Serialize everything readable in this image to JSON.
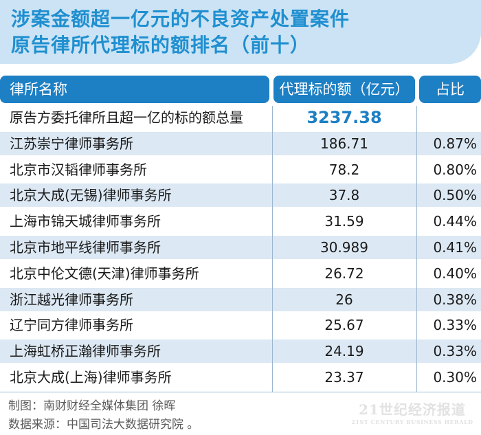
{
  "title": {
    "line1": "涉案金额超一亿元的不良资产处置案件",
    "line2": "原告律所代理标的额排名（前十）"
  },
  "table_header": {
    "name": "律所名称",
    "amount": "代理标的额（亿元）",
    "share": "占比"
  },
  "total_row": {
    "name": "原告方委托律所且超一亿的标的额总量",
    "amount": "3237.38",
    "share": ""
  },
  "rows": [
    {
      "name": "江苏崇宁律师事务所",
      "amount": "186.71",
      "share": "0.87%"
    },
    {
      "name": "北京市汉韬律师事务所",
      "amount": "78.2",
      "share": "0.80%"
    },
    {
      "name": "北京大成(无锡)律师事务所",
      "amount": "37.8",
      "share": "0.50%"
    },
    {
      "name": "上海市锦天城律师事务所",
      "amount": "31.59",
      "share": "0.44%"
    },
    {
      "name": "北京市地平线律师事务所",
      "amount": "30.989",
      "share": "0.41%"
    },
    {
      "name": "北京中伦文德(天津)律师事务所",
      "amount": "26.72",
      "share": "0.40%"
    },
    {
      "name": "浙江越光律师事务所",
      "amount": "26",
      "share": "0.38%"
    },
    {
      "name": "辽宁同方律师事务所",
      "amount": "25.67",
      "share": "0.33%"
    },
    {
      "name": "上海虹桥正瀚律师事务所",
      "amount": "24.19",
      "share": "0.33%"
    },
    {
      "name": "北京大成(上海)律师事务所",
      "amount": "23.37",
      "share": "0.30%"
    }
  ],
  "footer": {
    "maker": "制图：南财财经全媒体集团 徐晖",
    "source": "数据来源：中国司法大数据研究院 。"
  },
  "watermark": {
    "main": "21世纪经济报道",
    "sub": "21ST CENTURY BUSINESS HERALD"
  },
  "colors": {
    "title_text": "#1f8fd0",
    "title_bg": "#cbe3f4",
    "header_bg": "#1d7fc4",
    "alt_row": "#dce8f3"
  },
  "chart_data": {
    "type": "table",
    "title": "涉案金额超一亿元的不良资产处置案件原告律所代理标的额排名（前十）",
    "columns": [
      "律所名称",
      "代理标的额（亿元）",
      "占比"
    ],
    "total": {
      "label": "原告方委托律所且超一亿的标的额总量",
      "value": 3237.38
    },
    "categories": [
      "江苏崇宁律师事务所",
      "北京市汉韬律师事务所",
      "北京大成(无锡)律师事务所",
      "上海市锦天城律师事务所",
      "北京市地平线律师事务所",
      "北京中伦文德(天津)律师事务所",
      "浙江越光律师事务所",
      "辽宁同方律师事务所",
      "上海虹桥正瀚律师事务所",
      "北京大成(上海)律师事务所"
    ],
    "series": [
      {
        "name": "代理标的额（亿元）",
        "values": [
          186.71,
          78.2,
          37.8,
          31.59,
          30.989,
          26.72,
          26,
          25.67,
          24.19,
          23.37
        ]
      },
      {
        "name": "占比",
        "values": [
          0.87,
          0.8,
          0.5,
          0.44,
          0.41,
          0.4,
          0.38,
          0.33,
          0.33,
          0.3
        ]
      }
    ]
  }
}
